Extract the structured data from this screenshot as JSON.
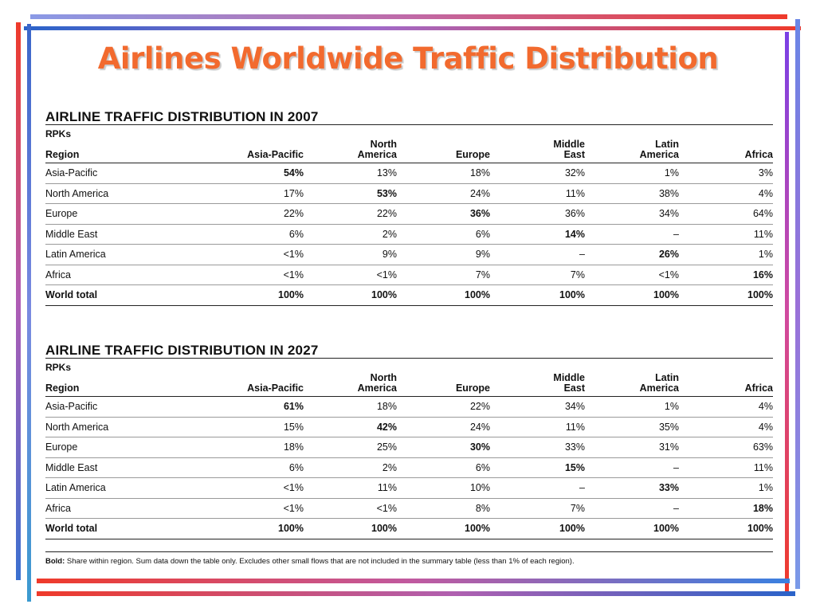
{
  "slide": {
    "title": "Airlines Worldwide Traffic Distribution",
    "colors": {
      "title": "#f26a2e",
      "frame_red": "#ef3a2a",
      "frame_blue": "#2a63c9",
      "frame_purple": "#a06ac9"
    }
  },
  "tables": [
    {
      "title": "AIRLINE TRAFFIC DISTRIBUTION IN 2007",
      "unit": "RPKs",
      "headers": {
        "region": "Region",
        "asia_pacific": [
          "",
          "Asia-Pacific"
        ],
        "north_america": [
          "North",
          "America"
        ],
        "europe": [
          "",
          "Europe"
        ],
        "middle_east": [
          "Middle",
          "East"
        ],
        "latin_america": [
          "Latin",
          "America"
        ],
        "africa": [
          "",
          "Africa"
        ]
      },
      "rows": [
        {
          "region": "Asia-Pacific",
          "values": [
            "54%",
            "13%",
            "18%",
            "32%",
            "1%",
            "3%"
          ],
          "bold_index": 0
        },
        {
          "region": "North America",
          "values": [
            "17%",
            "53%",
            "24%",
            "11%",
            "38%",
            "4%"
          ],
          "bold_index": 1
        },
        {
          "region": "Europe",
          "values": [
            "22%",
            "22%",
            "36%",
            "36%",
            "34%",
            "64%"
          ],
          "bold_index": 2
        },
        {
          "region": "Middle East",
          "values": [
            "6%",
            "2%",
            "6%",
            "14%",
            "–",
            "11%"
          ],
          "bold_index": 3
        },
        {
          "region": "Latin America",
          "values": [
            "<1%",
            "9%",
            "9%",
            "–",
            "26%",
            "1%"
          ],
          "bold_index": 4
        },
        {
          "region": "Africa",
          "values": [
            "<1%",
            "<1%",
            "7%",
            "7%",
            "<1%",
            "16%"
          ],
          "bold_index": 5
        }
      ],
      "total": {
        "region": "World total",
        "values": [
          "100%",
          "100%",
          "100%",
          "100%",
          "100%",
          "100%"
        ]
      }
    },
    {
      "title": "AIRLINE TRAFFIC DISTRIBUTION IN 2027",
      "unit": "RPKs",
      "headers": {
        "region": "Region",
        "asia_pacific": [
          "",
          "Asia-Pacific"
        ],
        "north_america": [
          "North",
          "America"
        ],
        "europe": [
          "",
          "Europe"
        ],
        "middle_east": [
          "Middle",
          "East"
        ],
        "latin_america": [
          "Latin",
          "America"
        ],
        "africa": [
          "",
          "Africa"
        ]
      },
      "rows": [
        {
          "region": "Asia-Pacific",
          "values": [
            "61%",
            "18%",
            "22%",
            "34%",
            "1%",
            "4%"
          ],
          "bold_index": 0
        },
        {
          "region": "North America",
          "values": [
            "15%",
            "42%",
            "24%",
            "11%",
            "35%",
            "4%"
          ],
          "bold_index": 1
        },
        {
          "region": "Europe",
          "values": [
            "18%",
            "25%",
            "30%",
            "33%",
            "31%",
            "63%"
          ],
          "bold_index": 2
        },
        {
          "region": "Middle East",
          "values": [
            "6%",
            "2%",
            "6%",
            "15%",
            "–",
            "11%"
          ],
          "bold_index": 3
        },
        {
          "region": "Latin America",
          "values": [
            "<1%",
            "11%",
            "10%",
            "–",
            "33%",
            "1%"
          ],
          "bold_index": 4
        },
        {
          "region": "Africa",
          "values": [
            "<1%",
            "<1%",
            "8%",
            "7%",
            "–",
            "18%"
          ],
          "bold_index": 5
        }
      ],
      "total": {
        "region": "World total",
        "values": [
          "100%",
          "100%",
          "100%",
          "100%",
          "100%",
          "100%"
        ]
      }
    }
  ],
  "footnote": {
    "bold_label": "Bold:",
    "text": " Share within region. Sum data down the table only. Excludes other small flows that are not included in the summary table (less than 1% of each region)."
  }
}
